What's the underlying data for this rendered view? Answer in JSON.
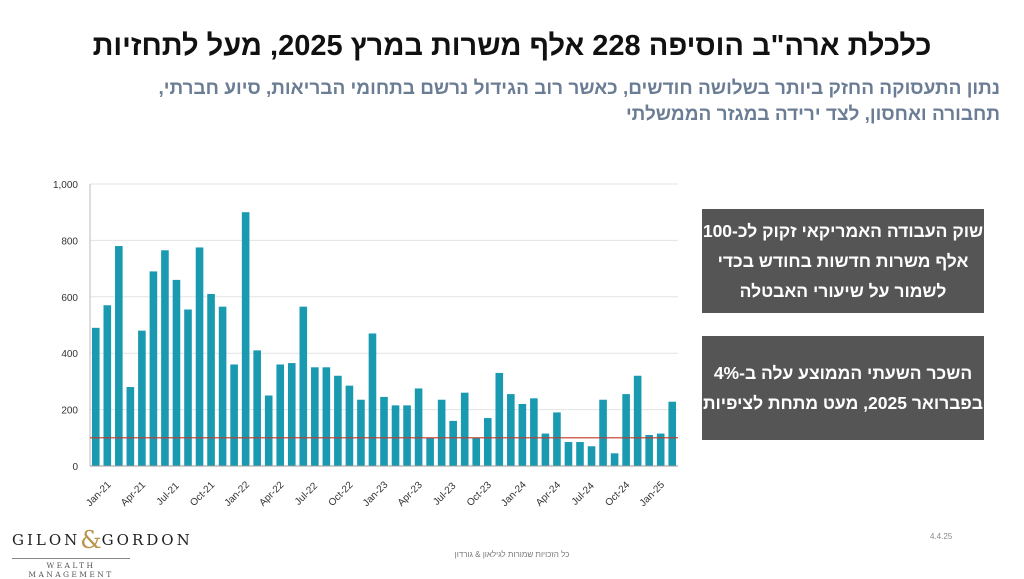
{
  "title": "כלכלת ארה\"ב הוסיפה 228 אלף משרות במרץ 2025, מעל לתחזיות",
  "subtitle_lines": [
    "נתון התעסוקה החזק ביותר בשלושה חודשים, כאשר רוב הגידול נרשם בתחומי הבריאות, סיוע חברתי,",
    "תחבורה ואחסון, לצד ירידה במגזר הממשלתי"
  ],
  "info_boxes": [
    {
      "lines": [
        "שוק העבודה האמריקאי זקוק לכ-100",
        "אלף משרות חדשות בחודש בכדי",
        "לשמור על שיעורי האבטלה"
      ]
    },
    {
      "lines": [
        "השכר השעתי הממוצע עלה ב-4%",
        "בפברואר 2025, מעט מתחת לציפיות"
      ]
    }
  ],
  "logo": {
    "left": "GILON",
    "amp": "&",
    "right": "GORDON",
    "sub": "WEALTH MANAGEMENT"
  },
  "footer": "כל הזכויות שמורות לגילאון & גורדון",
  "date": "4.4.25",
  "colors": {
    "bar": "#1a9ab0",
    "reference_line": "#c0392b",
    "box": "#555555"
  },
  "chart_data": {
    "type": "bar",
    "x": [
      "Jan-21",
      "Feb-21",
      "Mar-21",
      "Apr-21",
      "May-21",
      "Jun-21",
      "Jul-21",
      "Aug-21",
      "Sep-21",
      "Oct-21",
      "Nov-21",
      "Dec-21",
      "Jan-22",
      "Feb-22",
      "Mar-22",
      "Apr-22",
      "May-22",
      "Jun-22",
      "Jul-22",
      "Aug-22",
      "Sep-22",
      "Oct-22",
      "Nov-22",
      "Dec-22",
      "Jan-23",
      "Feb-23",
      "Mar-23",
      "Apr-23",
      "May-23",
      "Jun-23",
      "Jul-23",
      "Aug-23",
      "Sep-23",
      "Oct-23",
      "Nov-23",
      "Dec-23",
      "Jan-24",
      "Feb-24",
      "Mar-24",
      "Apr-24",
      "May-24",
      "Jun-24",
      "Jul-24",
      "Aug-24",
      "Sep-24",
      "Oct-24",
      "Nov-24",
      "Dec-24",
      "Jan-25",
      "Feb-25",
      "Mar-25"
    ],
    "values": [
      490,
      570,
      780,
      280,
      480,
      690,
      765,
      660,
      555,
      775,
      610,
      565,
      360,
      900,
      410,
      250,
      360,
      365,
      565,
      350,
      350,
      320,
      285,
      235,
      470,
      245,
      215,
      215,
      275,
      100,
      235,
      160,
      260,
      100,
      170,
      330,
      255,
      220,
      240,
      115,
      190,
      85,
      85,
      70,
      235,
      45,
      255,
      320,
      110,
      115,
      228
    ],
    "x_tick_labels": [
      "Jan-21",
      "Apr-21",
      "Jul-21",
      "Oct-21",
      "Jan-22",
      "Apr-22",
      "Jul-22",
      "Oct-22",
      "Jan-23",
      "Apr-23",
      "Jul-23",
      "Oct-23",
      "Jan-24",
      "Apr-24",
      "Jul-24",
      "Oct-24",
      "Jan-25"
    ],
    "y_tick_labels": [
      "0",
      "200",
      "400",
      "600",
      "800",
      "1,000"
    ],
    "ylim": [
      0,
      1000
    ],
    "y_ticks": [
      0,
      200,
      400,
      600,
      800,
      1000
    ],
    "reference_line": 100,
    "grid": "horizontal"
  }
}
